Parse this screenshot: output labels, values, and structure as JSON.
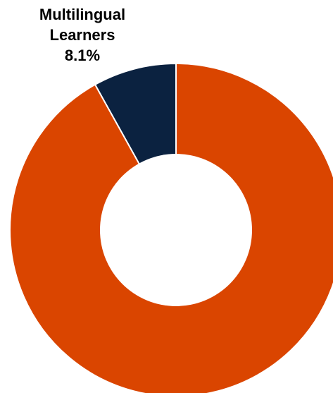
{
  "chart_data": {
    "type": "pie",
    "variant": "donut",
    "title": "",
    "legend": "none",
    "slices": [
      {
        "label": "Multilingual Learners",
        "value": 8.1,
        "value_label": "8.1%",
        "color": "#0B2240",
        "labeled": true
      },
      {
        "label": "",
        "value": 91.9,
        "value_label": "",
        "color": "#DA4500",
        "labeled": false
      }
    ],
    "start_angle": "12 o'clock",
    "direction": "counter-clockwise from top for first slice",
    "slice_border_color": "#FFFFFF"
  }
}
